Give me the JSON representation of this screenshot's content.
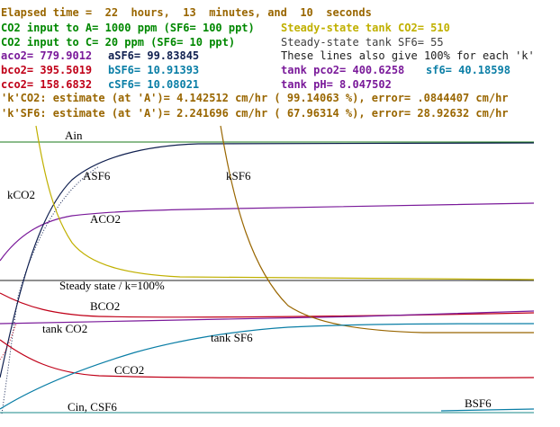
{
  "colors": {
    "brown": "#996600",
    "green": "#008800",
    "olive": "#c0b000",
    "gray": "#404040",
    "purple": "#7a1a9a",
    "blue": "#0a7ea6",
    "red": "#c00018",
    "navy": "#102050"
  },
  "header": {
    "elapsed": "Elapsed time =  22  hours,  13  minutes, and  10  seconds",
    "inputA": "CO2 input to A= 1000 ppm (SF6= 100 ppt)",
    "steadyCO2": "Steady-state tank CO2= 510",
    "inputC": "CO2 input to C= 20 ppm (SF6= 10 ppt)",
    "steadySF6": "Steady-state tank SF6= 55",
    "aco2": "aco2= 779.9012",
    "asf6": "aSF6= 99.83845",
    "note": "These lines also give 100% for each 'k'",
    "bco2": "bco2= 395.5019",
    "bsf6": "bSF6= 10.91393",
    "tankpco2": "tank pco2= 400.6258",
    "tanksf6": "sf6= 40.18598",
    "cco2": "cco2= 158.6832",
    "csf6": "cSF6= 10.08021",
    "tankph": "tank pH= 8.047502",
    "kco2": "'k'CO2: estimate (at 'A')= 4.142512 cm/hr ( 99.14063 %), error= .0844407 cm/hr",
    "ksf6": "'k'SF6: estimate (at 'A')= 2.241696 cm/hr ( 67.96314 %), error= 28.92632 cm/hr"
  },
  "plot_labels": {
    "ain": "Ain",
    "asf6": "ASF6",
    "ksf6": "kSF6",
    "kco2": "kCO2",
    "aco2": "ACO2",
    "steady": "Steady state / k=100%",
    "bco2": "BCO2",
    "tankco2": "tank CO2",
    "tanksf6": "tank SF6",
    "cco2": "CCO2",
    "cin": "Cin, CSF6",
    "bsf6": "BSF6"
  }
}
